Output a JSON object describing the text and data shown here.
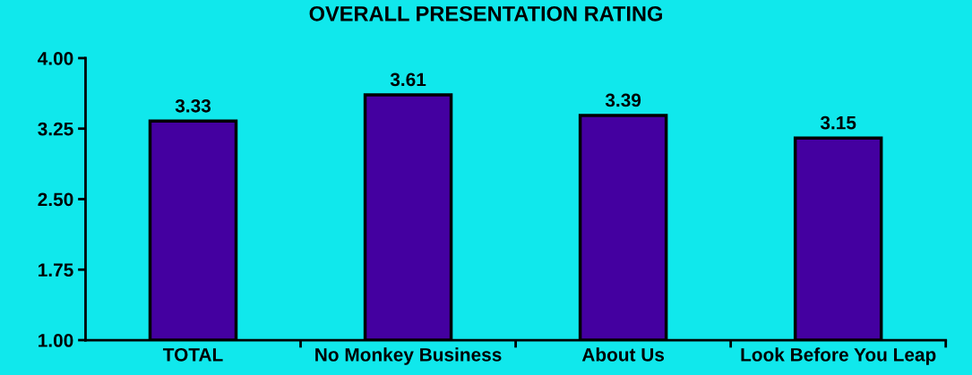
{
  "chart_data": {
    "type": "bar",
    "title": "OVERALL PRESENTATION RATING",
    "categories": [
      "TOTAL",
      "No Monkey Business",
      "About Us",
      "Look Before You Leap"
    ],
    "values": [
      3.33,
      3.61,
      3.39,
      3.15
    ],
    "color": "#4400a0",
    "ylim": [
      1.0,
      4.0
    ],
    "yticks": [
      {
        "value": 1.0,
        "label": "1.00"
      },
      {
        "value": 1.75,
        "label": "1.75"
      },
      {
        "value": 2.5,
        "label": "2.50"
      },
      {
        "value": 3.25,
        "label": "3.25"
      },
      {
        "value": 4.0,
        "label": "4.00"
      }
    ],
    "data_labels": true,
    "grid": false
  }
}
